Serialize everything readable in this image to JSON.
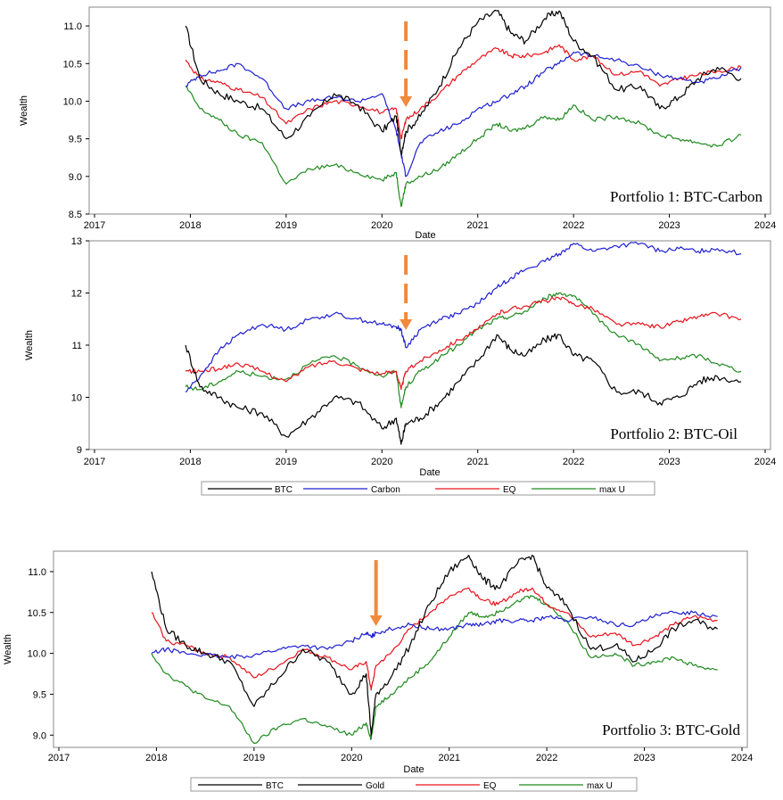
{
  "colors": {
    "BTC": "#000000",
    "Carbon": "#1f1fd0",
    "Oil": "#1f1fd0",
    "Gold": "#1f1fd0",
    "EQ": "#e8141c",
    "max U": "#1f8a1f",
    "arrow": "#f08a3c"
  },
  "legends": [
    {
      "entries": [
        "BTC",
        "Carbon",
        "EQ",
        "max U"
      ]
    },
    {
      "entries": [
        "BTC",
        "Gold",
        "EQ",
        "max U"
      ]
    }
  ],
  "chart_data": [
    {
      "type": "line",
      "title": "Portfolio 1: BTC-Carbon",
      "xlabel": "Date",
      "ylabel": "Wealth",
      "xlim": [
        2017,
        2024
      ],
      "ylim": [
        8.5,
        11.25
      ],
      "xticks": [
        "2017",
        "2018",
        "2019",
        "2020",
        "2021",
        "2022",
        "2023",
        "2024"
      ],
      "yticks": [
        "8.5",
        "9.0",
        "9.5",
        "10.0",
        "10.5",
        "11.0"
      ],
      "arrow_at": 2020.25,
      "x": [
        2017.95,
        2018.1,
        2018.3,
        2018.5,
        2018.75,
        2019.0,
        2019.25,
        2019.5,
        2019.75,
        2020.0,
        2020.15,
        2020.2,
        2020.25,
        2020.4,
        2020.6,
        2020.8,
        2021.0,
        2021.2,
        2021.35,
        2021.5,
        2021.7,
        2021.85,
        2022.0,
        2022.2,
        2022.45,
        2022.7,
        2022.9,
        2023.1,
        2023.3,
        2023.5,
        2023.75
      ],
      "series": [
        {
          "name": "BTC",
          "values": [
            11.0,
            10.3,
            10.1,
            10.0,
            9.9,
            9.5,
            9.8,
            10.1,
            9.95,
            9.6,
            9.8,
            9.3,
            9.6,
            9.8,
            10.2,
            10.7,
            11.05,
            11.2,
            10.9,
            10.8,
            11.1,
            11.2,
            10.8,
            10.6,
            10.15,
            10.2,
            9.9,
            10.05,
            10.3,
            10.45,
            10.3
          ]
        },
        {
          "name": "Carbon",
          "values": [
            10.2,
            10.35,
            10.4,
            10.5,
            10.3,
            9.9,
            10.0,
            10.05,
            10.0,
            10.1,
            9.6,
            9.3,
            9.0,
            9.45,
            9.6,
            9.7,
            9.9,
            10.0,
            10.1,
            10.2,
            10.4,
            10.5,
            10.65,
            10.6,
            10.55,
            10.45,
            10.35,
            10.3,
            10.25,
            10.3,
            10.45
          ]
        },
        {
          "name": "EQ",
          "values": [
            10.55,
            10.3,
            10.25,
            10.15,
            10.05,
            9.7,
            9.9,
            10.0,
            9.95,
            9.85,
            9.9,
            9.5,
            9.75,
            9.9,
            10.1,
            10.35,
            10.55,
            10.7,
            10.6,
            10.6,
            10.65,
            10.75,
            10.55,
            10.6,
            10.35,
            10.4,
            10.2,
            10.3,
            10.35,
            10.4,
            10.45
          ]
        },
        {
          "name": "max U",
          "values": [
            10.2,
            9.9,
            9.75,
            9.55,
            9.45,
            8.9,
            9.1,
            9.15,
            9.05,
            8.95,
            9.05,
            8.6,
            8.9,
            9.0,
            9.1,
            9.3,
            9.5,
            9.7,
            9.6,
            9.65,
            9.8,
            9.75,
            9.95,
            9.75,
            9.8,
            9.7,
            9.55,
            9.5,
            9.45,
            9.4,
            9.55
          ]
        }
      ]
    },
    {
      "type": "line",
      "title": "Portfolio 2: BTC-Oil",
      "xlabel": "Date",
      "ylabel": "Wealth",
      "xlim": [
        2017,
        2024
      ],
      "ylim": [
        9,
        13
      ],
      "xticks": [
        "2017",
        "2018",
        "2019",
        "2020",
        "2021",
        "2022",
        "2023",
        "2024"
      ],
      "yticks": [
        "9",
        "10",
        "11",
        "12",
        "13"
      ],
      "arrow_at": 2020.25,
      "x": [
        2017.95,
        2018.1,
        2018.3,
        2018.5,
        2018.75,
        2019.0,
        2019.25,
        2019.5,
        2019.75,
        2020.0,
        2020.15,
        2020.2,
        2020.25,
        2020.4,
        2020.6,
        2020.8,
        2021.0,
        2021.2,
        2021.35,
        2021.5,
        2021.7,
        2021.85,
        2022.0,
        2022.2,
        2022.45,
        2022.7,
        2022.9,
        2023.1,
        2023.3,
        2023.5,
        2023.75
      ],
      "series": [
        {
          "name": "BTC",
          "values": [
            11.0,
            10.2,
            10.0,
            9.8,
            9.7,
            9.25,
            9.6,
            10.0,
            9.9,
            9.4,
            9.6,
            9.1,
            9.5,
            9.6,
            9.9,
            10.3,
            10.7,
            11.2,
            10.9,
            10.8,
            11.1,
            11.2,
            10.8,
            10.7,
            10.1,
            10.1,
            9.9,
            10.0,
            10.3,
            10.4,
            10.3
          ]
        },
        {
          "name": "Oil",
          "values": [
            10.1,
            10.4,
            10.9,
            11.2,
            11.4,
            11.3,
            11.5,
            11.6,
            11.5,
            11.4,
            11.35,
            11.3,
            10.95,
            11.3,
            11.5,
            11.6,
            11.8,
            12.1,
            12.3,
            12.45,
            12.6,
            12.75,
            12.95,
            12.8,
            12.9,
            12.95,
            12.8,
            12.85,
            12.8,
            12.85,
            12.75
          ]
        },
        {
          "name": "EQ",
          "values": [
            10.5,
            10.5,
            10.55,
            10.65,
            10.5,
            10.3,
            10.6,
            10.7,
            10.55,
            10.45,
            10.5,
            10.15,
            10.5,
            10.7,
            10.9,
            11.1,
            11.3,
            11.6,
            11.7,
            11.75,
            11.85,
            11.9,
            11.8,
            11.7,
            11.4,
            11.4,
            11.35,
            11.45,
            11.55,
            11.6,
            11.5
          ]
        },
        {
          "name": "max U",
          "values": [
            10.2,
            10.15,
            10.3,
            10.5,
            10.4,
            10.35,
            10.65,
            10.8,
            10.6,
            10.4,
            10.5,
            9.8,
            10.2,
            10.5,
            10.75,
            11.0,
            11.3,
            11.5,
            11.55,
            11.65,
            11.9,
            12.0,
            11.95,
            11.6,
            11.2,
            11.0,
            10.7,
            10.75,
            10.8,
            10.65,
            10.5
          ]
        }
      ]
    },
    {
      "type": "line",
      "title": "Portfolio 3: BTC-Gold",
      "xlabel": "Date",
      "ylabel": "Wealth",
      "xlim": [
        2017,
        2024
      ],
      "ylim": [
        8.85,
        11.25
      ],
      "xticks": [
        "2017",
        "2018",
        "2019",
        "2020",
        "2021",
        "2022",
        "2023",
        "2024"
      ],
      "yticks": [
        "9.0",
        "9.5",
        "10.0",
        "10.5",
        "11.0"
      ],
      "arrow_at": 2020.25,
      "x": [
        2017.95,
        2018.1,
        2018.3,
        2018.5,
        2018.75,
        2019.0,
        2019.25,
        2019.5,
        2019.75,
        2020.0,
        2020.15,
        2020.2,
        2020.25,
        2020.4,
        2020.6,
        2020.8,
        2021.0,
        2021.2,
        2021.35,
        2021.5,
        2021.7,
        2021.85,
        2022.0,
        2022.2,
        2022.45,
        2022.7,
        2022.9,
        2023.1,
        2023.3,
        2023.5,
        2023.75
      ],
      "series": [
        {
          "name": "BTC",
          "values": [
            11.0,
            10.3,
            10.1,
            10.0,
            9.9,
            9.35,
            9.7,
            10.05,
            9.9,
            9.5,
            9.75,
            9.0,
            9.5,
            9.7,
            10.1,
            10.6,
            11.0,
            11.2,
            10.9,
            10.8,
            11.1,
            11.2,
            10.8,
            10.6,
            10.05,
            10.1,
            9.9,
            10.05,
            10.3,
            10.4,
            10.3
          ]
        },
        {
          "name": "Gold",
          "values": [
            10.0,
            10.05,
            10.0,
            9.98,
            9.95,
            9.98,
            10.05,
            10.1,
            10.05,
            10.15,
            10.25,
            10.2,
            10.25,
            10.3,
            10.35,
            10.3,
            10.3,
            10.35,
            10.35,
            10.4,
            10.4,
            10.4,
            10.45,
            10.4,
            10.45,
            10.35,
            10.35,
            10.45,
            10.5,
            10.5,
            10.45
          ]
        },
        {
          "name": "EQ",
          "values": [
            10.5,
            10.15,
            10.1,
            10.0,
            9.95,
            9.7,
            9.85,
            10.05,
            9.95,
            9.8,
            9.9,
            9.55,
            9.85,
            10.0,
            10.3,
            10.5,
            10.7,
            10.8,
            10.65,
            10.6,
            10.75,
            10.8,
            10.6,
            10.5,
            10.2,
            10.25,
            10.1,
            10.2,
            10.35,
            10.45,
            10.4
          ]
        },
        {
          "name": "max U",
          "values": [
            10.0,
            9.75,
            9.6,
            9.45,
            9.35,
            8.9,
            9.1,
            9.2,
            9.1,
            9.0,
            9.15,
            8.95,
            9.35,
            9.5,
            9.7,
            9.9,
            10.2,
            10.5,
            10.45,
            10.5,
            10.65,
            10.7,
            10.6,
            10.4,
            9.95,
            10.0,
            9.85,
            9.9,
            9.95,
            9.85,
            9.8
          ]
        }
      ]
    }
  ]
}
